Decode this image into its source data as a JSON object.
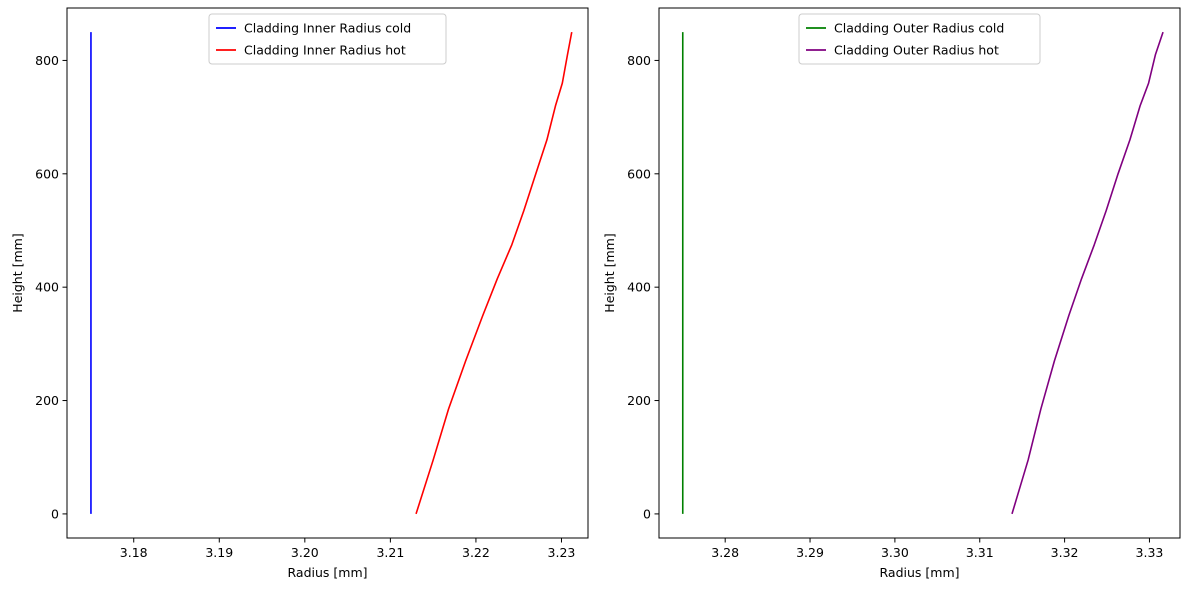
{
  "chart_data": [
    {
      "type": "line",
      "title": "",
      "xlabel": "Radius [mm]",
      "ylabel": "Height [mm]",
      "xlim": [
        3.1722,
        3.2331
      ],
      "ylim": [
        -42.5,
        892.5
      ],
      "xticks": [
        3.18,
        3.19,
        3.2,
        3.21,
        3.22,
        3.23
      ],
      "xtick_labels": [
        "3.18",
        "3.19",
        "3.20",
        "3.21",
        "3.22",
        "3.23"
      ],
      "yticks": [
        0,
        200,
        400,
        600,
        800
      ],
      "ytick_labels": [
        "0",
        "200",
        "400",
        "600",
        "800"
      ],
      "grid": false,
      "legend_position": "upper center",
      "series": [
        {
          "name": "Cladding Inner Radius cold",
          "color": "#0000ff",
          "points": [
            [
              3.175,
              0
            ],
            [
              3.175,
              850
            ]
          ]
        },
        {
          "name": "Cladding Inner Radius hot",
          "color": "#ff0000",
          "points": [
            [
              3.213,
              0
            ],
            [
              3.215,
              95
            ],
            [
              3.2168,
              185
            ],
            [
              3.2188,
              270
            ],
            [
              3.2208,
              350
            ],
            [
              3.2225,
              415
            ],
            [
              3.2242,
              475
            ],
            [
              3.2256,
              535
            ],
            [
              3.227,
              600
            ],
            [
              3.2283,
              660
            ],
            [
              3.2293,
              720
            ],
            [
              3.2301,
              760
            ],
            [
              3.2307,
              810
            ],
            [
              3.2312,
              850
            ]
          ]
        }
      ]
    },
    {
      "type": "line",
      "title": "",
      "xlabel": "Radius [mm]",
      "ylabel": "Height [mm]",
      "xlim": [
        3.2722,
        3.3336
      ],
      "ylim": [
        -42.5,
        892.5
      ],
      "xticks": [
        3.28,
        3.29,
        3.3,
        3.31,
        3.32,
        3.33
      ],
      "xtick_labels": [
        "3.28",
        "3.29",
        "3.30",
        "3.31",
        "3.32",
        "3.33"
      ],
      "yticks": [
        0,
        200,
        400,
        600,
        800
      ],
      "ytick_labels": [
        "0",
        "200",
        "400",
        "600",
        "800"
      ],
      "grid": false,
      "legend_position": "upper center",
      "series": [
        {
          "name": "Cladding Outer Radius cold",
          "color": "#008000",
          "points": [
            [
              3.275,
              0
            ],
            [
              3.275,
              850
            ]
          ]
        },
        {
          "name": "Cladding Outer Radius hot",
          "color": "#800080",
          "points": [
            [
              3.3138,
              0
            ],
            [
              3.3157,
              95
            ],
            [
              3.3172,
              185
            ],
            [
              3.3188,
              270
            ],
            [
              3.3205,
              350
            ],
            [
              3.322,
              415
            ],
            [
              3.3235,
              475
            ],
            [
              3.3249,
              535
            ],
            [
              3.3263,
              600
            ],
            [
              3.3277,
              660
            ],
            [
              3.3289,
              720
            ],
            [
              3.3299,
              760
            ],
            [
              3.3307,
              810
            ],
            [
              3.3316,
              850
            ]
          ]
        }
      ]
    }
  ]
}
